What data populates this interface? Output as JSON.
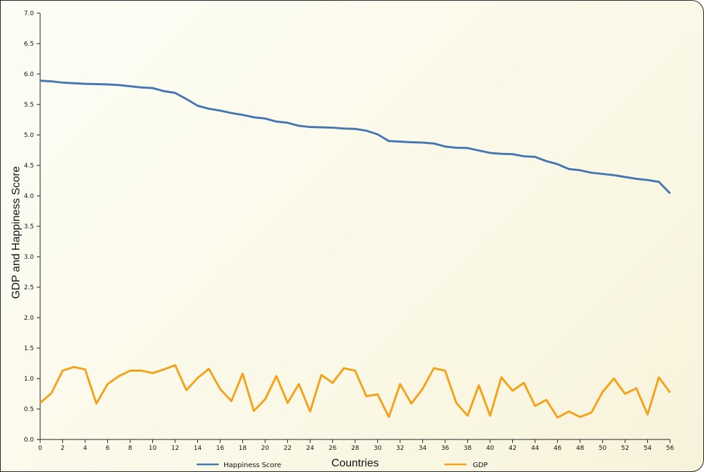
{
  "chart_data": {
    "type": "line",
    "title": "",
    "xlabel": "Countries",
    "ylabel": "GDP and Happiness Score",
    "xlim": [
      0,
      56
    ],
    "ylim": [
      0,
      7
    ],
    "grid": false,
    "legend_position": "bottom",
    "x_ticks": [
      0,
      2,
      4,
      6,
      8,
      10,
      12,
      14,
      16,
      18,
      20,
      22,
      24,
      26,
      28,
      30,
      32,
      34,
      36,
      38,
      40,
      42,
      44,
      46,
      48,
      50,
      52,
      54,
      56
    ],
    "y_ticks": [
      "0.0",
      "0.5",
      "1.0",
      "1.5",
      "2.0",
      "2.5",
      "3.0",
      "3.5",
      "4.0",
      "4.5",
      "5.0",
      "5.5",
      "6.0",
      "6.5",
      "7.0"
    ],
    "x": [
      0,
      1,
      2,
      3,
      4,
      5,
      6,
      7,
      8,
      9,
      10,
      11,
      12,
      13,
      14,
      15,
      16,
      17,
      18,
      19,
      20,
      21,
      22,
      23,
      24,
      25,
      26,
      27,
      28,
      29,
      30,
      31,
      32,
      33,
      34,
      35,
      36,
      37,
      38,
      39,
      40,
      41,
      42,
      43,
      44,
      45,
      46,
      47,
      48,
      49,
      50,
      51,
      52,
      53,
      54,
      55,
      56
    ],
    "series": [
      {
        "name": "Happiness Score",
        "color": "#4677b0",
        "values": [
          5.89,
          5.88,
          5.86,
          5.85,
          5.84,
          5.835,
          5.83,
          5.82,
          5.8,
          5.78,
          5.77,
          5.72,
          5.69,
          5.59,
          5.48,
          5.43,
          5.4,
          5.36,
          5.33,
          5.29,
          5.27,
          5.22,
          5.2,
          5.15,
          5.13,
          5.125,
          5.12,
          5.105,
          5.1,
          5.07,
          5.01,
          4.9,
          4.89,
          4.88,
          4.875,
          4.86,
          4.81,
          4.79,
          4.785,
          4.745,
          4.705,
          4.69,
          4.685,
          4.65,
          4.64,
          4.57,
          4.52,
          4.44,
          4.42,
          4.38,
          4.36,
          4.34,
          4.31,
          4.28,
          4.26,
          4.23,
          4.04
        ]
      },
      {
        "name": "GDP",
        "color": "#f5a21b",
        "values": [
          0.6,
          0.76,
          1.13,
          1.19,
          1.15,
          0.59,
          0.91,
          1.04,
          1.13,
          1.13,
          1.09,
          1.15,
          1.22,
          0.81,
          1.01,
          1.16,
          0.83,
          0.63,
          1.08,
          0.47,
          0.66,
          1.04,
          0.6,
          0.91,
          0.46,
          1.06,
          0.93,
          1.17,
          1.13,
          0.71,
          0.74,
          0.37,
          0.91,
          0.59,
          0.83,
          1.17,
          1.13,
          0.6,
          0.39,
          0.89,
          0.39,
          1.02,
          0.8,
          0.93,
          0.55,
          0.65,
          0.36,
          0.46,
          0.37,
          0.44,
          0.78,
          1.0,
          0.75,
          0.84,
          0.41,
          1.02,
          0.77
        ]
      }
    ]
  }
}
